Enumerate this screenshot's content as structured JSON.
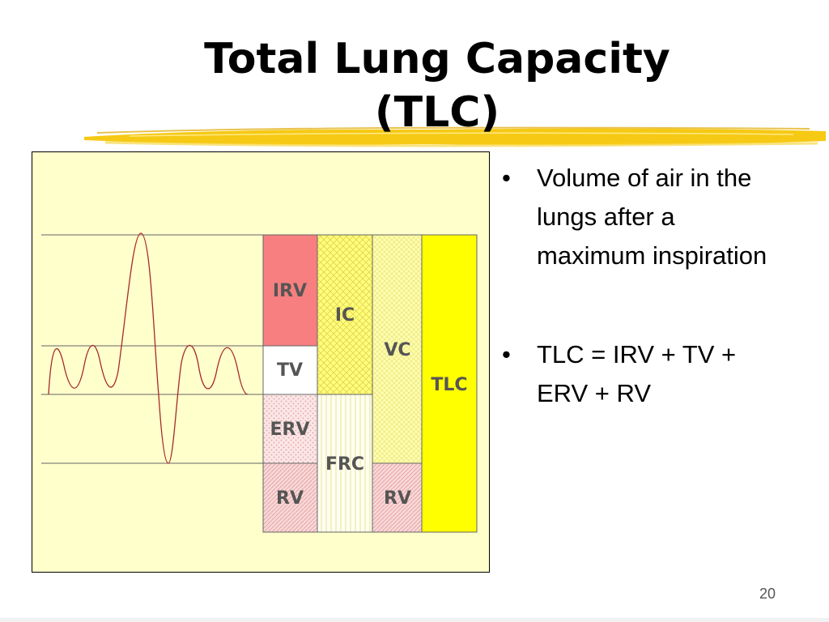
{
  "slide": {
    "title_line1": "Total Lung Capacity",
    "title_line2": "(TLC)",
    "page_number": "20",
    "accent_color": "#f5c400"
  },
  "bullets": [
    {
      "marker": "•",
      "text": "Volume of air in the lungs after a maximum inspiration"
    },
    {
      "marker": "•",
      "text": "TLC = IRV + TV + ERV + RV"
    }
  ],
  "diagram": {
    "background_color": "#ffffcc",
    "trace_color": "#a52a2a",
    "blocks": {
      "irv": {
        "label": "IRV",
        "color": "#f77f7f"
      },
      "tv": {
        "label": "TV",
        "color": "#ffffff"
      },
      "erv": {
        "label": "ERV",
        "color": "#fbe3e3"
      },
      "rv1": {
        "label": "RV",
        "color": "#f9dede"
      },
      "ic": {
        "label": "IC",
        "color": "#ffff80"
      },
      "frc": {
        "label": "FRC",
        "color": "#fffff0"
      },
      "vc": {
        "label": "VC",
        "color": "#ffffb0"
      },
      "rv2": {
        "label": "RV",
        "color": "#f9dede"
      },
      "tlc": {
        "label": "TLC",
        "color": "#ffff00"
      }
    }
  }
}
